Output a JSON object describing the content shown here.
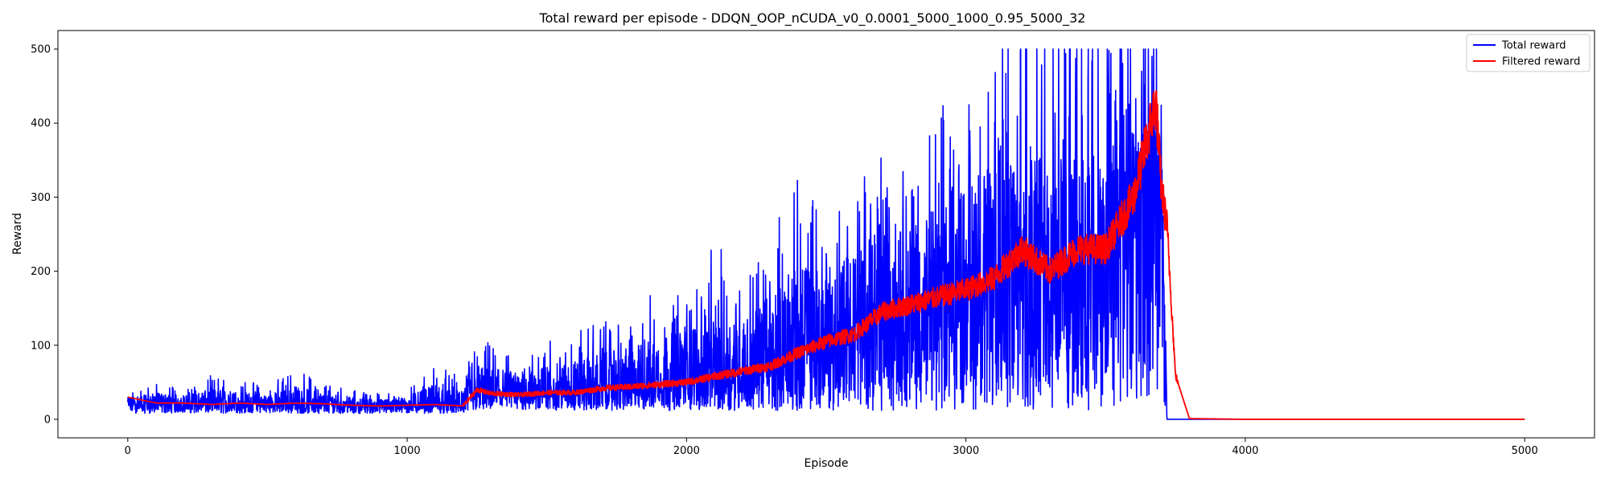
{
  "chart_data": {
    "type": "line",
    "title": "Total reward per episode - DDQN_OOP_nCUDA_v0_0.0001_5000_1000_0.95_5000_32",
    "xlabel": "Episode",
    "ylabel": "Reward",
    "xlim": [
      -250,
      5250
    ],
    "ylim": [
      -25,
      525
    ],
    "xticks": [
      0,
      1000,
      2000,
      3000,
      4000,
      5000
    ],
    "yticks": [
      0,
      100,
      200,
      300,
      400,
      500
    ],
    "grid": false,
    "legend": {
      "placement": "top-right"
    },
    "series": [
      {
        "name": "Total reward",
        "color": "#0000ff",
        "x": [
          0,
          100,
          200,
          300,
          400,
          500,
          600,
          700,
          800,
          900,
          1000,
          1100,
          1200,
          1250,
          1300,
          1400,
          1500,
          1600,
          1700,
          1800,
          1900,
          2000,
          2100,
          2200,
          2300,
          2400,
          2500,
          2600,
          2700,
          2800,
          2900,
          3000,
          3100,
          3200,
          3300,
          3400,
          3500,
          3600,
          3650,
          3700,
          3720,
          3740,
          4000,
          5000
        ],
        "values": [
          20,
          22,
          20,
          21,
          20,
          21,
          20,
          20,
          19,
          19,
          19,
          20,
          19,
          33,
          35,
          35,
          36,
          38,
          40,
          43,
          47,
          52,
          58,
          65,
          76,
          90,
          105,
          120,
          140,
          150,
          160,
          175,
          190,
          210,
          220,
          200,
          230,
          280,
          320,
          310,
          0,
          0,
          0,
          0
        ],
        "min": [
          8,
          8,
          9,
          8,
          8,
          9,
          8,
          8,
          8,
          8,
          8,
          8,
          8,
          12,
          12,
          12,
          12,
          12,
          12,
          12,
          12,
          12,
          12,
          12,
          12,
          12,
          12,
          12,
          12,
          12,
          12,
          12,
          12,
          12,
          12,
          12,
          12,
          12,
          20,
          30,
          0,
          0,
          0,
          0
        ],
        "max": [
          40,
          48,
          45,
          60,
          55,
          45,
          70,
          50,
          40,
          35,
          40,
          75,
          55,
          120,
          100,
          80,
          110,
          120,
          140,
          150,
          180,
          190,
          240,
          200,
          260,
          330,
          300,
          330,
          380,
          360,
          420,
          450,
          500,
          500,
          500,
          500,
          500,
          500,
          500,
          500,
          0,
          0,
          0,
          0
        ]
      },
      {
        "name": "Filtered reward",
        "color": "#ff0000",
        "x": [
          0,
          100,
          200,
          300,
          400,
          500,
          600,
          700,
          800,
          900,
          1000,
          1100,
          1200,
          1250,
          1300,
          1400,
          1500,
          1600,
          1700,
          1800,
          1900,
          2000,
          2100,
          2200,
          2300,
          2400,
          2500,
          2600,
          2700,
          2800,
          2900,
          3000,
          3100,
          3200,
          3300,
          3400,
          3500,
          3600,
          3650,
          3680,
          3700,
          3720,
          3750,
          3800,
          4000,
          5000
        ],
        "values": [
          30,
          22,
          22,
          20,
          22,
          20,
          22,
          21,
          19,
          18,
          19,
          20,
          18,
          40,
          35,
          33,
          36,
          36,
          42,
          44,
          47,
          50,
          58,
          65,
          72,
          90,
          105,
          115,
          145,
          155,
          165,
          175,
          190,
          230,
          200,
          230,
          230,
          300,
          380,
          430,
          310,
          260,
          60,
          1,
          0,
          0
        ]
      }
    ]
  }
}
